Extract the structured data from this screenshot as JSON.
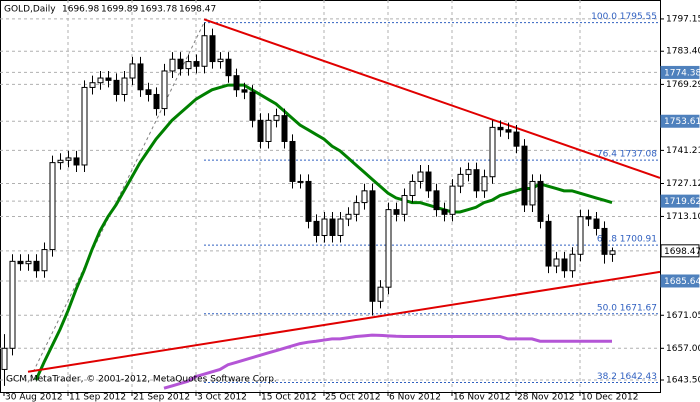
{
  "chart_data": {
    "type": "candlestick",
    "title": "GOLD,Daily",
    "footer": "GCM MetaTrader, © 2001-2012, MetaQuotes Software Corp.",
    "categories": [
      "30 Aug 2012",
      null,
      null,
      null,
      null,
      null,
      null,
      null,
      "11 Sep 2012",
      null,
      null,
      null,
      null,
      null,
      null,
      null,
      "21 Sep 2012",
      null,
      null,
      null,
      null,
      null,
      null,
      null,
      "3 Oct 2012",
      null,
      null,
      null,
      null,
      null,
      null,
      null,
      "15 Oct 2012",
      null,
      null,
      null,
      null,
      null,
      null,
      null,
      "25 Oct 2012",
      null,
      null,
      null,
      null,
      null,
      null,
      null,
      "6 Nov 2012",
      null,
      null,
      null,
      null,
      null,
      null,
      null,
      "16 Nov 2012",
      null,
      null,
      null,
      null,
      null,
      null,
      null,
      "28 Nov 2012",
      null,
      null,
      null,
      null,
      null,
      null,
      null,
      "10 Dec 2012",
      null,
      null,
      null,
      null
    ],
    "open": [
      1648,
      1657,
      1694,
      1693,
      1694,
      1690,
      1699,
      1736,
      1737,
      1738,
      1735,
      1768,
      1770,
      1772,
      1771,
      1765,
      1772,
      1778,
      1767,
      1765,
      1759,
      1775,
      1780,
      1776,
      1779,
      1777,
      1790,
      1779,
      1780,
      1773,
      1767,
      1766,
      1754,
      1745,
      1754,
      1756,
      1745,
      1728,
      1728,
      1711,
      1705,
      1712,
      1705,
      1712,
      1714,
      1719,
      1724,
      1677,
      1683,
      1716,
      1714,
      1722,
      1728,
      1732,
      1724,
      1716,
      1714,
      1726,
      1731,
      1733,
      1724,
      1730,
      1751,
      1750,
      1749,
      1743,
      1718,
      1728,
      1711,
      1692,
      1695,
      1690,
      1697,
      1713,
      1712,
      1708,
      1696.98
    ],
    "high": [
      1663,
      1697,
      1697,
      1697,
      1697,
      1702,
      1739,
      1740,
      1741,
      1741,
      1771,
      1773,
      1775,
      1775,
      1774,
      1775,
      1781,
      1781,
      1770,
      1768,
      1778,
      1783,
      1783,
      1782,
      1782,
      1795.55,
      1793,
      1783,
      1783,
      1776,
      1770,
      1769,
      1757,
      1757,
      1759,
      1759,
      1748,
      1731,
      1731,
      1714,
      1715,
      1715,
      1715,
      1717,
      1722,
      1727,
      1727,
      1686,
      1719,
      1719,
      1725,
      1731,
      1735,
      1735,
      1727,
      1719,
      1729,
      1734,
      1736,
      1736,
      1733,
      1754,
      1754,
      1753,
      1752,
      1746,
      1731,
      1731,
      1714,
      1698,
      1698,
      1700,
      1716,
      1716,
      1715,
      1711,
      1699.89
    ],
    "low": [
      1641,
      1654,
      1690,
      1690,
      1687,
      1687,
      1696,
      1733,
      1734,
      1732,
      1732,
      1765,
      1767,
      1768,
      1762,
      1762,
      1769,
      1764,
      1762,
      1756,
      1756,
      1772,
      1773,
      1773,
      1774,
      1774,
      1776,
      1776,
      1770,
      1764,
      1763,
      1751,
      1742,
      1742,
      1751,
      1742,
      1725,
      1725,
      1708,
      1702,
      1702,
      1702,
      1702,
      1709,
      1711,
      1716,
      1671,
      1674,
      1680,
      1711,
      1711,
      1719,
      1725,
      1721,
      1713,
      1711,
      1711,
      1723,
      1728,
      1721,
      1721,
      1727,
      1747,
      1746,
      1740,
      1715,
      1715,
      1708,
      1689,
      1689,
      1687,
      1687,
      1694,
      1709,
      1705,
      1693,
      1693.78
    ],
    "close": [
      1657,
      1694,
      1693,
      1694,
      1690,
      1699,
      1736,
      1737,
      1738,
      1735,
      1768,
      1770,
      1772,
      1771,
      1765,
      1772,
      1778,
      1767,
      1765,
      1759,
      1775,
      1780,
      1776,
      1779,
      1777,
      1790,
      1779,
      1780,
      1773,
      1767,
      1766,
      1754,
      1745,
      1754,
      1756,
      1745,
      1728,
      1728,
      1711,
      1705,
      1712,
      1705,
      1712,
      1714,
      1719,
      1724,
      1677,
      1683,
      1716,
      1714,
      1722,
      1728,
      1732,
      1724,
      1716,
      1714,
      1726,
      1731,
      1733,
      1724,
      1730,
      1751,
      1750,
      1749,
      1743,
      1718,
      1728,
      1711,
      1692,
      1695,
      1690,
      1697,
      1713,
      1712,
      1708,
      1696.98,
      1698.47
    ],
    "series": [
      {
        "color": "#008000",
        "values": [
          null,
          null,
          null,
          null,
          1643.5,
          1651,
          1658,
          1665,
          1673,
          1682,
          1690,
          1699,
          1707,
          1713,
          1718,
          1724,
          1730,
          1736,
          1741,
          1746,
          1750,
          1754,
          1757,
          1760,
          1763,
          1765,
          1767,
          1768,
          1769,
          1769,
          1769,
          1767,
          1765,
          1763,
          1761,
          1758,
          1755,
          1752,
          1750,
          1748,
          1746,
          1743,
          1741,
          1738,
          1735,
          1732,
          1729,
          1726,
          1723,
          1721,
          1720,
          1719,
          1719,
          1718,
          1717,
          1716,
          1715,
          1715,
          1716,
          1717,
          1719,
          1720,
          1722,
          1723,
          1724,
          1725,
          1725,
          1727,
          1726,
          1725,
          1724,
          1724,
          1723,
          1722,
          1721,
          1720,
          1719
        ]
      },
      {
        "color": "#b455d6",
        "values": [
          null,
          null,
          null,
          null,
          null,
          null,
          null,
          null,
          null,
          null,
          null,
          null,
          null,
          null,
          null,
          null,
          null,
          null,
          null,
          null,
          1640,
          1641,
          1642,
          1643,
          1645,
          1646,
          1647,
          1648,
          1650,
          1651,
          1652,
          1653,
          1654,
          1655,
          1656,
          1657,
          1658,
          1659,
          1659.6,
          1660,
          1660.5,
          1661,
          1661,
          1661.5,
          1662,
          1662.3,
          1662.6,
          1662.5,
          1662.3,
          1662.1,
          1662,
          1662,
          1662,
          1662,
          1662,
          1662,
          1662,
          1662,
          1662,
          1662,
          1662,
          1662,
          1662,
          1661,
          1661,
          1661,
          1661,
          1660,
          1660,
          1660,
          1660,
          1660,
          1660,
          1660,
          1660,
          1660,
          1660
        ]
      }
    ],
    "trendlines": [
      {
        "color": "#e00000",
        "x": [
          25,
          82
        ],
        "values": [
          1797,
          1729.5
        ]
      },
      {
        "color": "#e00000",
        "x": [
          3,
          82
        ],
        "values": [
          1647,
          1689.5
        ]
      }
    ],
    "fibo": {
      "color": "#3060c0",
      "x": [
        3,
        25
      ],
      "levels": [
        {
          "value": 1795.55,
          "label": "100.0 1795.55"
        },
        {
          "value": 1737.08,
          "label": "76.4 1737.08"
        },
        {
          "value": 1700.91,
          "label": "61.8 1700.91"
        },
        {
          "value": 1671.67,
          "label": "50.0 1671.67"
        },
        {
          "value": 1642.43,
          "label": "38.2 1642.43"
        }
      ]
    },
    "hlines": [
      {
        "value": 1774.38,
        "color": "#4f81bd"
      },
      {
        "value": 1753.61,
        "color": "#4f81bd"
      },
      {
        "value": 1719.62,
        "color": "#4f81bd"
      },
      {
        "value": 1698.47,
        "color": "#ffffff"
      },
      {
        "value": 1685.64,
        "color": "#4f81bd"
      }
    ],
    "ylim": [
      1638.4,
      1805.2
    ],
    "yticks": [
      1797.15,
      {
        "value": 1783.4,
        "label": "1783.40"
      },
      1769.29,
      1741.21,
      1727.12,
      {
        "value": 1713.1,
        "label": "1713.10"
      },
      1671.05,
      {
        "value": 1657,
        "label": "1657.00"
      },
      {
        "value": 1643.5,
        "label": "1643.50"
      }
    ],
    "grid": true
  }
}
